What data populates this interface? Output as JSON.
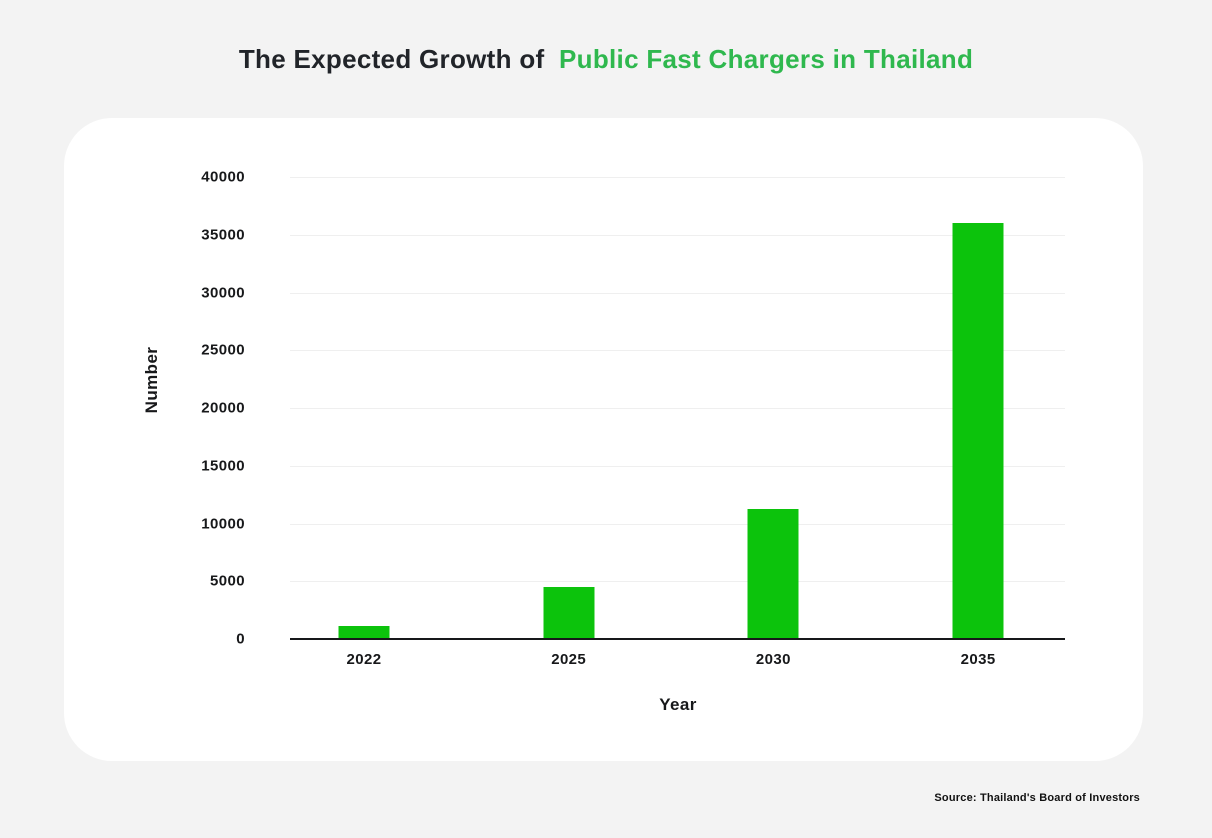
{
  "title": {
    "prefix": "The Expected Growth of",
    "highlight": "Public Fast Chargers in Thailand"
  },
  "source": "Source: Thailand's Board of Investors",
  "colors": {
    "bar": "#0cc30c",
    "title_text": "#212429",
    "title_highlight": "#2fb84e",
    "axis_line": "#17181a",
    "gridline": "#efefef",
    "page_bg": "#f3f3f3",
    "card_bg": "#ffffff",
    "tick_text": "#17181a"
  },
  "chart_data": {
    "type": "bar",
    "title": "The Expected Growth of Public Fast Chargers in Thailand",
    "categories": [
      "2022",
      "2025",
      "2030",
      "2035"
    ],
    "values": [
      1100,
      4500,
      11250,
      36000
    ],
    "xlabel": "Year",
    "ylabel": "Number",
    "ylim": [
      0,
      40000
    ],
    "ytick_step": 5000,
    "ytick_labels": [
      "0",
      "5000",
      "10000",
      "15000",
      "20000",
      "25000",
      "30000",
      "35000",
      "40000"
    ],
    "grid": "horizontal",
    "legend": "none",
    "bar_color": "#0cc30c"
  }
}
